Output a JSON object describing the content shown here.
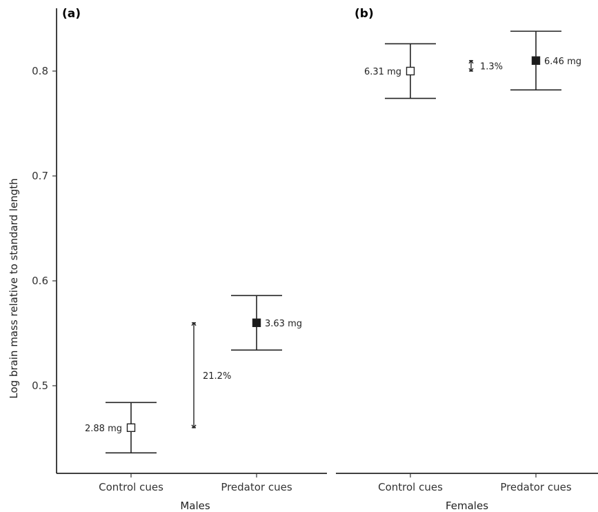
{
  "chart_data": {
    "type": "scatter",
    "ylabel": "Log brain mass relative to standard length",
    "ylim": [
      0.42,
      0.85
    ],
    "y_ticks": [
      0.5,
      0.6,
      0.7,
      0.8
    ],
    "y_tick_labels": [
      "0.5",
      "0.6",
      "0.7",
      "0.8"
    ],
    "grid": false,
    "colors": {
      "control_marker": "#ffffff",
      "predator_marker": "#1a1a1a",
      "stroke": "#222222"
    },
    "panels": [
      {
        "tag": "(a)",
        "xlabel": "Males",
        "categories": [
          "Control cues",
          "Predator cues"
        ],
        "points": [
          {
            "category": "Control cues",
            "y": 0.46,
            "lower": 0.436,
            "upper": 0.484,
            "fill": "open",
            "label": "2.88 mg",
            "label_side": "left"
          },
          {
            "category": "Predator cues",
            "y": 0.56,
            "lower": 0.534,
            "upper": 0.586,
            "fill": "filled",
            "label": "3.63 mg",
            "label_side": "right"
          }
        ],
        "difference": {
          "from": 0.46,
          "to": 0.56,
          "label": "21.2%"
        }
      },
      {
        "tag": "(b)",
        "xlabel": "Females",
        "categories": [
          "Control cues",
          "Predator cues"
        ],
        "points": [
          {
            "category": "Control cues",
            "y": 0.8,
            "lower": 0.774,
            "upper": 0.826,
            "fill": "open",
            "label": "6.31 mg",
            "label_side": "left"
          },
          {
            "category": "Predator cues",
            "y": 0.81,
            "lower": 0.782,
            "upper": 0.838,
            "fill": "filled",
            "label": "6.46 mg",
            "label_side": "right"
          }
        ],
        "difference": {
          "from": 0.8,
          "to": 0.81,
          "label": "1.3%"
        }
      }
    ]
  }
}
